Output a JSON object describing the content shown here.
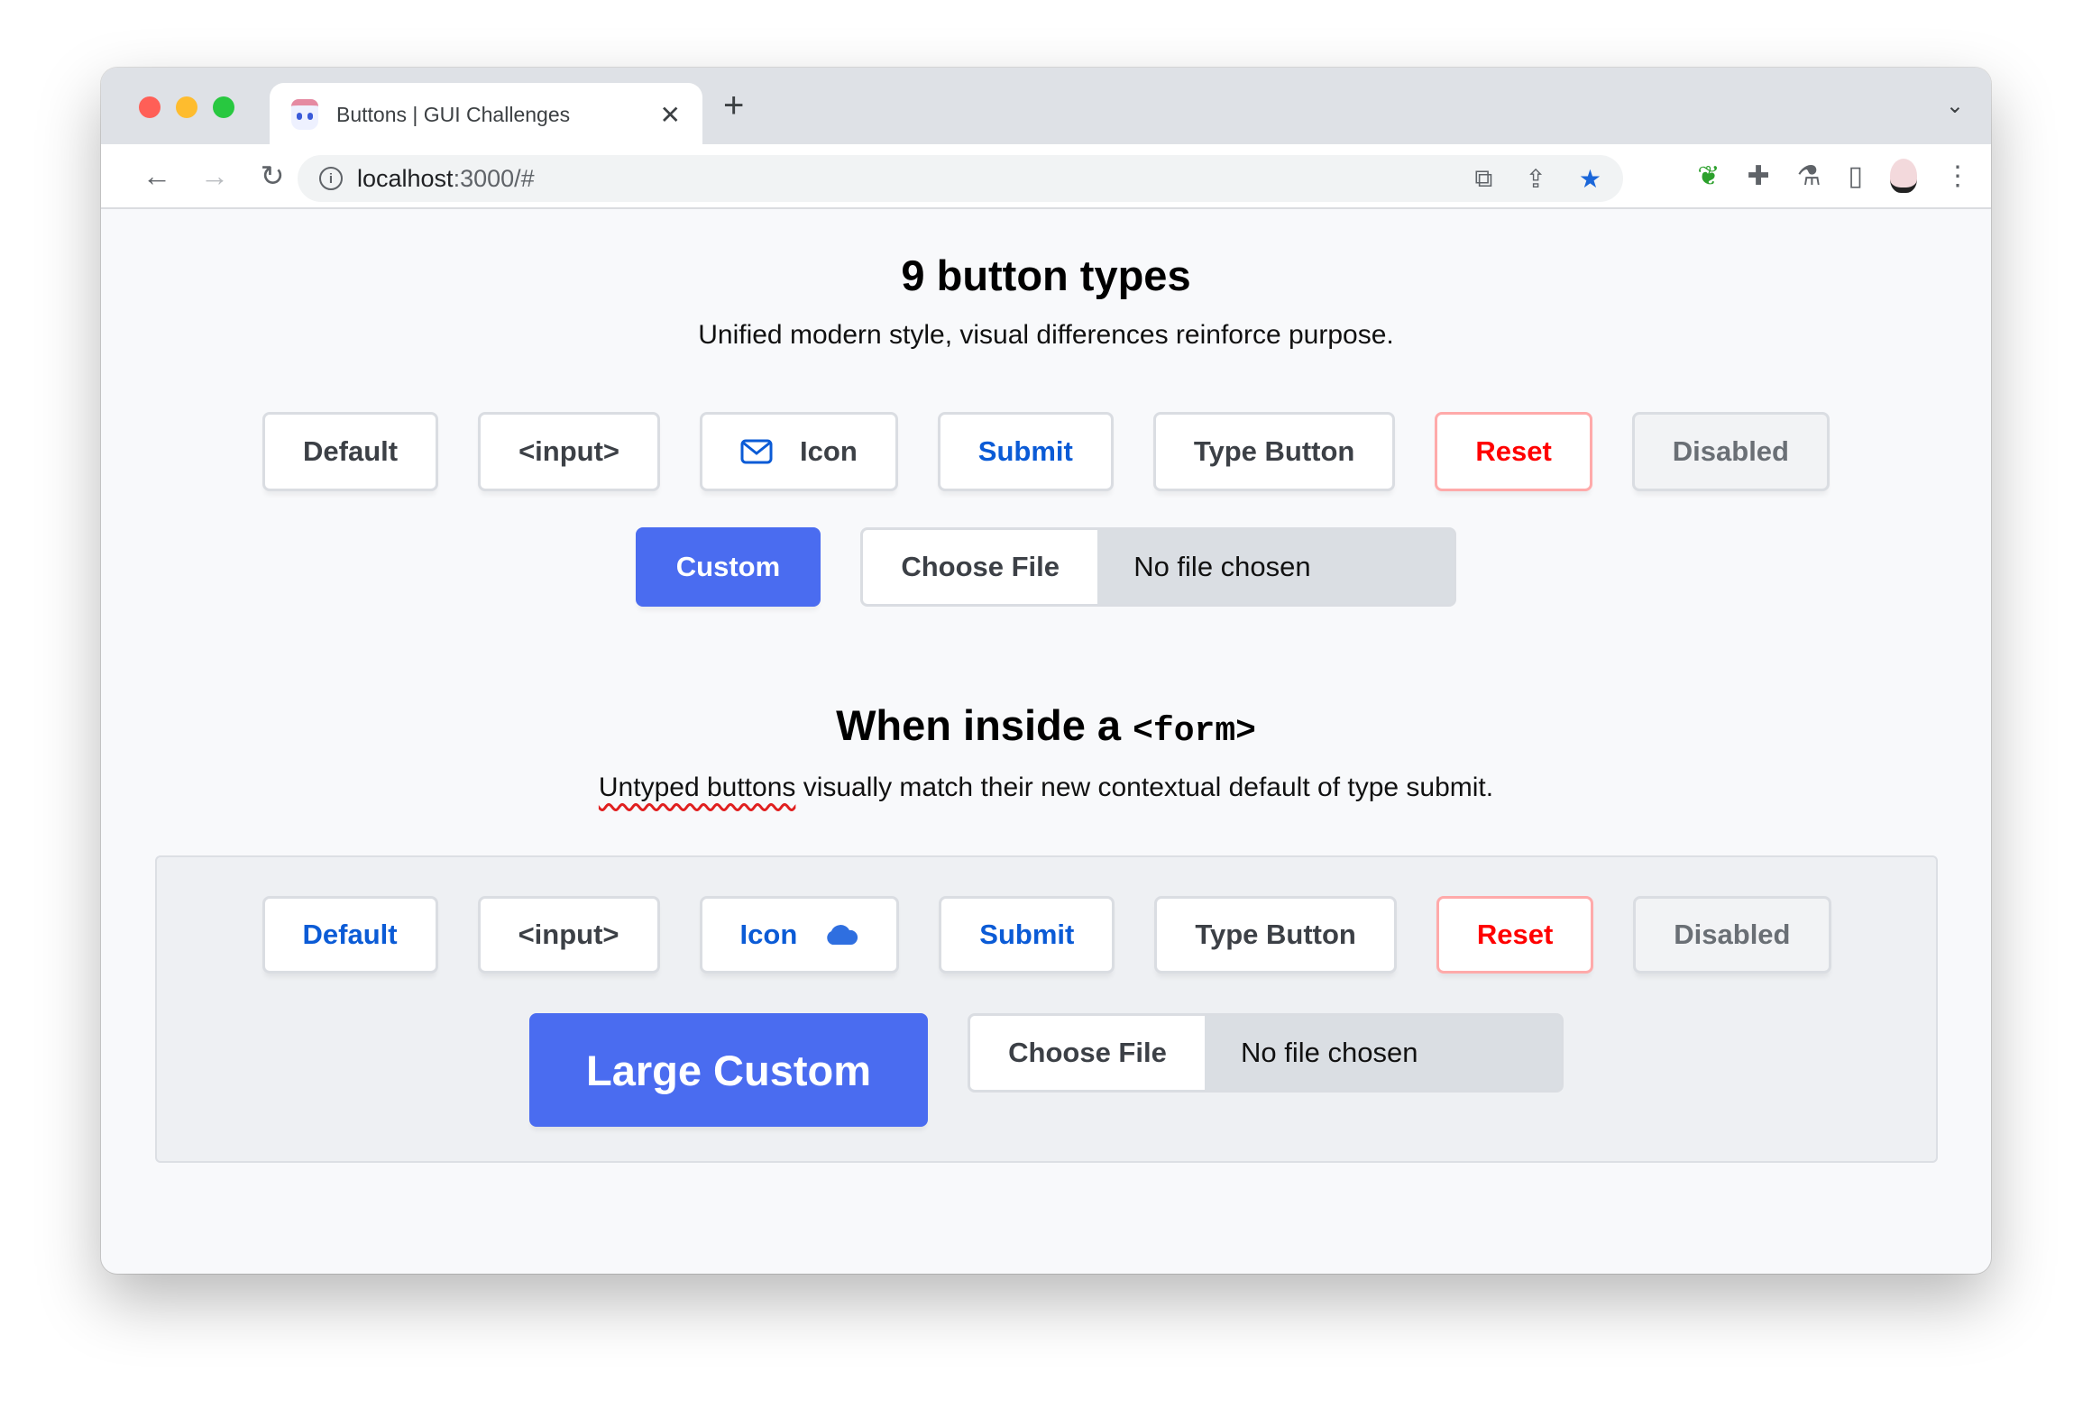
{
  "browser": {
    "tab_title": "Buttons | GUI Challenges",
    "url_host": "localhost",
    "url_rest": ":3000/#",
    "traffic_colors": [
      "#ff5f57",
      "#febc2e",
      "#28c840"
    ],
    "star_color": "#1a66d9"
  },
  "section1": {
    "title": "9 button types",
    "subtitle": "Unified modern style, visual differences reinforce purpose.",
    "buttons": [
      "Default",
      "<input>",
      "Icon",
      "Submit",
      "Type Button",
      "Reset",
      "Disabled"
    ],
    "custom": "Custom",
    "file_choose": "Choose File",
    "file_status": "No file chosen"
  },
  "section2": {
    "title_prefix": "When inside a ",
    "title_code": "<form>",
    "subtitle_underlined": "Untyped buttons",
    "subtitle_rest": " visually match their new contextual default of type submit.",
    "buttons": [
      "Default",
      "<input>",
      "Icon",
      "Submit",
      "Type Button",
      "Reset",
      "Disabled"
    ],
    "custom": "Large Custom",
    "file_choose": "Choose File",
    "file_status": "No file chosen"
  },
  "colors": {
    "accent": "#4a6cf0",
    "submit": "#0b5bd6",
    "reset": "#ff0000"
  }
}
